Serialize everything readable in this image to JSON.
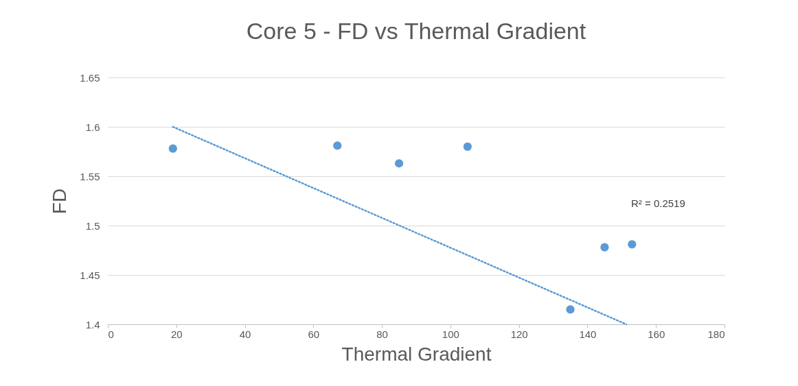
{
  "chart_data": {
    "type": "scatter",
    "title": "Core 5 - FD vs Thermal Gradient",
    "xlabel": "Thermal Gradient",
    "ylabel": "FD",
    "xlim": [
      0,
      180
    ],
    "xticks": [
      0,
      20,
      40,
      60,
      80,
      100,
      120,
      140,
      160,
      180
    ],
    "ylim": [
      1.4,
      1.65
    ],
    "yticks": [
      1.4,
      1.45,
      1.5,
      1.55,
      1.6,
      1.65
    ],
    "grid": "y",
    "series": [
      {
        "marker": "circle",
        "color": "#5b9bd5",
        "x": [
          19,
          67,
          85,
          105,
          135,
          145,
          153
        ],
        "values": [
          1.578,
          1.581,
          1.563,
          1.58,
          1.415,
          1.478,
          1.481
        ]
      },
      {
        "type": "line",
        "marker": "none",
        "color": "#5b9bd5",
        "line_style": "dotted",
        "x": [
          19,
          151.3
        ],
        "values": [
          1.6,
          1.4
        ]
      }
    ],
    "annotations": [
      "R² = 0.2519"
    ]
  }
}
